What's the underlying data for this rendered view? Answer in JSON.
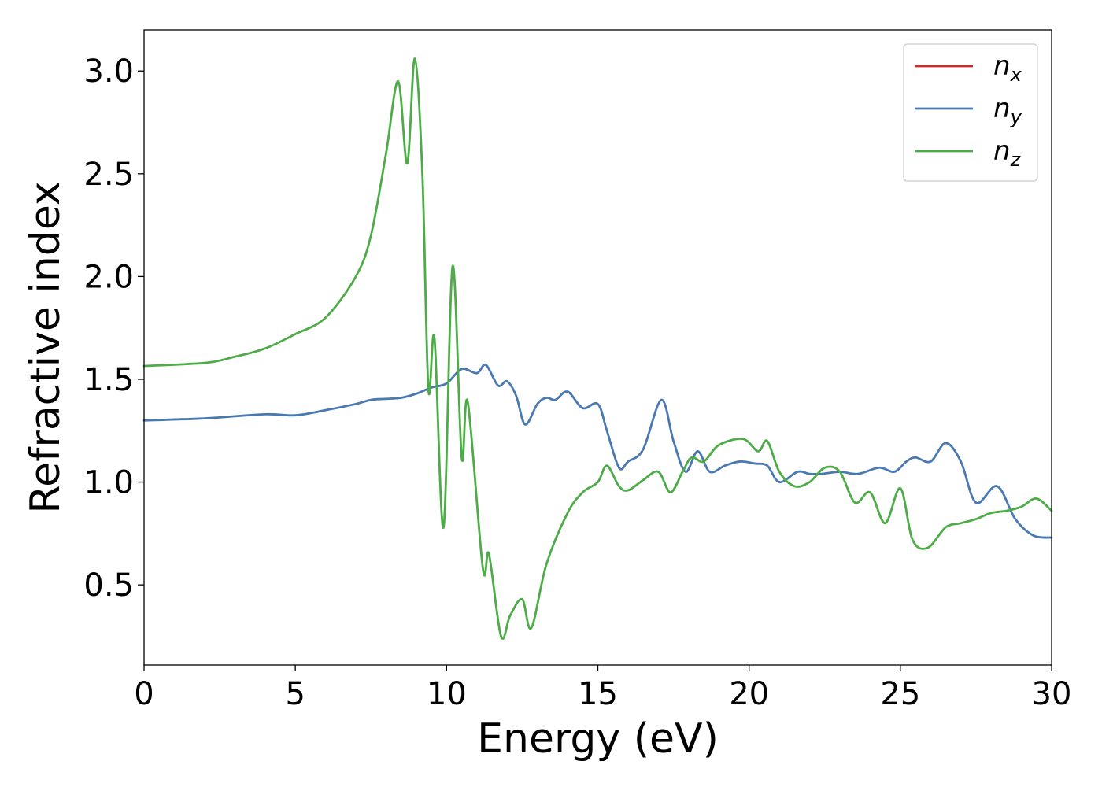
{
  "chart_data": {
    "type": "line",
    "title": "",
    "xlabel": "Energy (eV)",
    "ylabel": "Refractive index",
    "xlim": [
      0,
      30
    ],
    "ylim": [
      0.11,
      3.2
    ],
    "xticks": [
      0,
      5,
      10,
      15,
      20,
      25,
      30
    ],
    "xtick_labels": [
      "0",
      "5",
      "10",
      "15",
      "20",
      "25",
      "30"
    ],
    "yticks": [
      0.5,
      1.0,
      1.5,
      2.0,
      2.5,
      3.0
    ],
    "ytick_labels": [
      "0.5",
      "1.0",
      "1.5",
      "2.0",
      "2.5",
      "3.0"
    ],
    "grid": false,
    "legend_position": "top-right",
    "series": [
      {
        "name": "n_x",
        "label_base": "n",
        "label_sub": "x",
        "color": "#d62728",
        "draw_line": false,
        "shared_with": "n_y"
      },
      {
        "name": "n_y",
        "label_base": "n",
        "label_sub": "y",
        "color": "#4a78b0",
        "draw_line": true,
        "points": [
          [
            0,
            1.3
          ],
          [
            2,
            1.31
          ],
          [
            4,
            1.33
          ],
          [
            5,
            1.325
          ],
          [
            6,
            1.35
          ],
          [
            7,
            1.38
          ],
          [
            7.5,
            1.4
          ],
          [
            8,
            1.405
          ],
          [
            8.5,
            1.41
          ],
          [
            9,
            1.43
          ],
          [
            9.5,
            1.46
          ],
          [
            10,
            1.48
          ],
          [
            10.5,
            1.55
          ],
          [
            11,
            1.53
          ],
          [
            11.3,
            1.57
          ],
          [
            11.7,
            1.47
          ],
          [
            12,
            1.49
          ],
          [
            12.3,
            1.42
          ],
          [
            12.6,
            1.28
          ],
          [
            13,
            1.38
          ],
          [
            13.3,
            1.41
          ],
          [
            13.6,
            1.4
          ],
          [
            14,
            1.44
          ],
          [
            14.5,
            1.36
          ],
          [
            15,
            1.38
          ],
          [
            15.3,
            1.25
          ],
          [
            15.7,
            1.07
          ],
          [
            16,
            1.1
          ],
          [
            16.5,
            1.16
          ],
          [
            17.1,
            1.4
          ],
          [
            17.5,
            1.2
          ],
          [
            17.9,
            1.05
          ],
          [
            18.3,
            1.15
          ],
          [
            18.7,
            1.05
          ],
          [
            19.2,
            1.08
          ],
          [
            19.7,
            1.1
          ],
          [
            20.2,
            1.09
          ],
          [
            20.6,
            1.08
          ],
          [
            21,
            1.0
          ],
          [
            21.6,
            1.05
          ],
          [
            22,
            1.04
          ],
          [
            22.4,
            1.04
          ],
          [
            23,
            1.05
          ],
          [
            23.6,
            1.04
          ],
          [
            24.3,
            1.07
          ],
          [
            24.8,
            1.05
          ],
          [
            25.2,
            1.1
          ],
          [
            25.5,
            1.12
          ],
          [
            26,
            1.1
          ],
          [
            26.5,
            1.19
          ],
          [
            27,
            1.1
          ],
          [
            27.5,
            0.9
          ],
          [
            28.2,
            0.98
          ],
          [
            28.8,
            0.82
          ],
          [
            29.4,
            0.74
          ],
          [
            30,
            0.73
          ]
        ]
      },
      {
        "name": "n_z",
        "label_base": "n",
        "label_sub": "z",
        "color": "#4dac47",
        "draw_line": true,
        "points": [
          [
            0,
            1.565
          ],
          [
            2,
            1.58
          ],
          [
            3,
            1.61
          ],
          [
            4,
            1.65
          ],
          [
            5,
            1.72
          ],
          [
            6,
            1.8
          ],
          [
            7,
            2.0
          ],
          [
            7.5,
            2.2
          ],
          [
            8,
            2.6
          ],
          [
            8.4,
            2.95
          ],
          [
            8.7,
            2.55
          ],
          [
            8.95,
            3.06
          ],
          [
            9.2,
            2.5
          ],
          [
            9.4,
            1.45
          ],
          [
            9.6,
            1.7
          ],
          [
            9.9,
            0.78
          ],
          [
            10.2,
            2.05
          ],
          [
            10.5,
            1.12
          ],
          [
            10.7,
            1.39
          ],
          [
            11.2,
            0.58
          ],
          [
            11.4,
            0.65
          ],
          [
            11.8,
            0.25
          ],
          [
            12.1,
            0.35
          ],
          [
            12.5,
            0.43
          ],
          [
            12.8,
            0.29
          ],
          [
            13.3,
            0.6
          ],
          [
            14,
            0.85
          ],
          [
            14.5,
            0.95
          ],
          [
            15,
            1.0
          ],
          [
            15.3,
            1.08
          ],
          [
            15.7,
            0.98
          ],
          [
            16,
            0.96
          ],
          [
            16.5,
            1.01
          ],
          [
            17,
            1.05
          ],
          [
            17.4,
            0.95
          ],
          [
            17.8,
            1.05
          ],
          [
            18.1,
            1.12
          ],
          [
            18.5,
            1.1
          ],
          [
            19,
            1.18
          ],
          [
            19.8,
            1.21
          ],
          [
            20.3,
            1.15
          ],
          [
            20.6,
            1.2
          ],
          [
            21,
            1.05
          ],
          [
            21.5,
            0.98
          ],
          [
            22,
            1.0
          ],
          [
            22.5,
            1.07
          ],
          [
            23,
            1.05
          ],
          [
            23.5,
            0.9
          ],
          [
            24,
            0.95
          ],
          [
            24.5,
            0.8
          ],
          [
            25,
            0.97
          ],
          [
            25.4,
            0.72
          ],
          [
            25.9,
            0.68
          ],
          [
            26.5,
            0.78
          ],
          [
            27,
            0.8
          ],
          [
            27.5,
            0.82
          ],
          [
            28,
            0.85
          ],
          [
            28.5,
            0.86
          ],
          [
            29,
            0.88
          ],
          [
            29.5,
            0.92
          ],
          [
            30,
            0.86
          ]
        ]
      }
    ]
  }
}
